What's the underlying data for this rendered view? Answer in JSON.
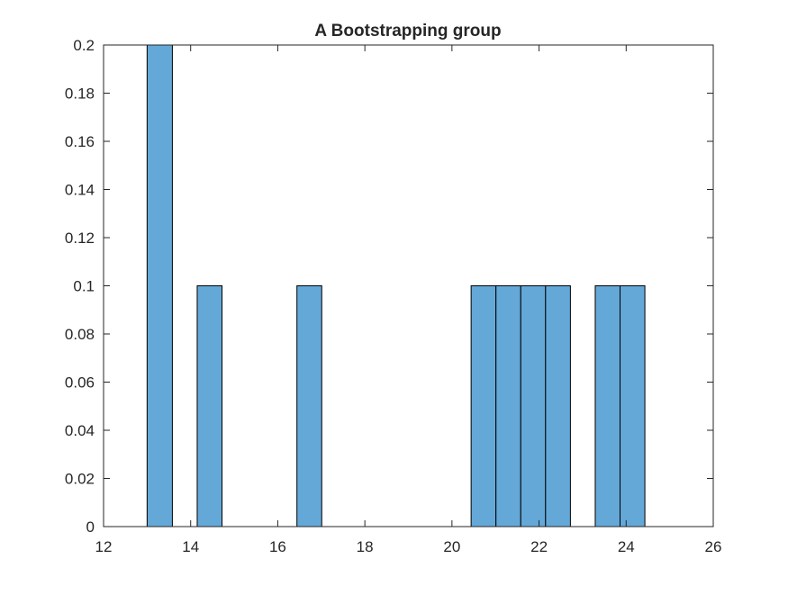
{
  "chart_data": {
    "type": "bar",
    "title": "A Bootstrapping group",
    "xlabel": "",
    "ylabel": "",
    "xlim": [
      12,
      26
    ],
    "ylim": [
      0,
      0.2
    ],
    "xticks": [
      "12",
      "14",
      "16",
      "18",
      "20",
      "22",
      "24",
      "26"
    ],
    "yticks": [
      "0",
      "0.02",
      "0.04",
      "0.06",
      "0.08",
      "0.1",
      "0.12",
      "0.14",
      "0.16",
      "0.18",
      "0.2"
    ],
    "grid": false,
    "bar_color": "#64a8d8",
    "edge_color": "#000000",
    "bins": [
      {
        "x0": 13.0,
        "x1": 13.58,
        "value": 0.2
      },
      {
        "x0": 14.15,
        "x1": 14.72,
        "value": 0.1
      },
      {
        "x0": 16.44,
        "x1": 17.01,
        "value": 0.1
      },
      {
        "x0": 20.44,
        "x1": 21.01,
        "value": 0.1
      },
      {
        "x0": 21.01,
        "x1": 21.58,
        "value": 0.1
      },
      {
        "x0": 21.58,
        "x1": 22.15,
        "value": 0.1
      },
      {
        "x0": 22.15,
        "x1": 22.72,
        "value": 0.1
      },
      {
        "x0": 23.29,
        "x1": 23.86,
        "value": 0.1
      },
      {
        "x0": 23.86,
        "x1": 24.43,
        "value": 0.1
      }
    ]
  }
}
